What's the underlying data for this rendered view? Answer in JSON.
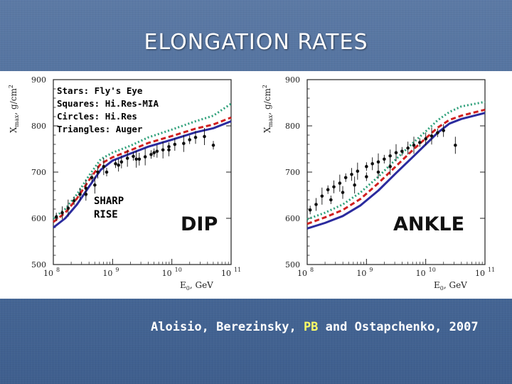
{
  "slide": {
    "title": "ELONGATION RATES",
    "credit_prefix": "Aloisio, Berezinsky, ",
    "credit_highlight": "PB",
    "credit_suffix": " and Ostapchenko, 2007",
    "legend_lines": [
      "Stars: Fly's Eye",
      "Squares: Hi.Res-MIA",
      "Circles: Hi.Res",
      "Triangles: Auger"
    ],
    "sharp_rise_lines": [
      "SHARP",
      "RISE"
    ],
    "dip_label": "DIP",
    "ankle_label": "ANKLE"
  },
  "colors": {
    "background": "#4a6b9a",
    "title": "#ffffff",
    "highlight": "#ffff66",
    "model_solid": "#2b2b9e",
    "model_dashed": "#d02020",
    "model_dotted": "#2ea07a"
  },
  "chart_data": [
    {
      "type": "line",
      "panel": "left",
      "ylabel_main": "X",
      "ylabel_sub": "max",
      "ylabel_unit": ", g/cm",
      "ylabel_exp": "2",
      "xlabel_main": "E",
      "xlabel_sub": "0",
      "xlabel_unit": ", GeV",
      "xscale": "log",
      "xlim": [
        100000000.0,
        100000000000.0
      ],
      "ylim": [
        500,
        900
      ],
      "yticks": [
        500,
        600,
        700,
        800,
        900
      ],
      "xticks": [
        {
          "base": "10",
          "exp": "8",
          "value": 8
        },
        {
          "base": "10",
          "exp": "9",
          "value": 9
        },
        {
          "base": "10",
          "exp": "10",
          "value": 10
        },
        {
          "base": "10",
          "exp": "11",
          "value": 11
        }
      ],
      "series": [
        {
          "style": "solid",
          "color": "#2b2b9e",
          "points": [
            [
              8.0,
              580
            ],
            [
              8.2,
              600
            ],
            [
              8.4,
              630
            ],
            [
              8.6,
              668
            ],
            [
              8.8,
              705
            ],
            [
              9.0,
              725
            ],
            [
              9.3,
              740
            ],
            [
              9.6,
              755
            ],
            [
              10.0,
              770
            ],
            [
              10.4,
              786
            ],
            [
              10.7,
              795
            ],
            [
              11.0,
              810
            ]
          ]
        },
        {
          "style": "dashed",
          "color": "#d02020",
          "points": [
            [
              8.0,
              592
            ],
            [
              8.2,
              612
            ],
            [
              8.4,
              643
            ],
            [
              8.6,
              682
            ],
            [
              8.8,
              718
            ],
            [
              9.0,
              732
            ],
            [
              9.3,
              747
            ],
            [
              9.6,
              763
            ],
            [
              10.0,
              778
            ],
            [
              10.4,
              794
            ],
            [
              10.7,
              803
            ],
            [
              11.0,
              818
            ]
          ]
        },
        {
          "style": "dotted",
          "color": "#2ea07a",
          "points": [
            [
              8.0,
              600
            ],
            [
              8.2,
              620
            ],
            [
              8.4,
              652
            ],
            [
              8.6,
              692
            ],
            [
              8.8,
              728
            ],
            [
              9.0,
              742
            ],
            [
              9.3,
              757
            ],
            [
              9.6,
              775
            ],
            [
              10.0,
              792
            ],
            [
              10.4,
              810
            ],
            [
              10.7,
              822
            ],
            [
              11.0,
              848
            ]
          ]
        }
      ],
      "points": [
        [
          8.05,
          603
        ],
        [
          8.15,
          612
        ],
        [
          8.25,
          622
        ],
        [
          8.35,
          638
        ],
        [
          8.45,
          652
        ],
        [
          8.55,
          665
        ],
        [
          8.65,
          688
        ],
        [
          8.75,
          700
        ],
        [
          8.85,
          712
        ],
        [
          9.05,
          718
        ],
        [
          9.15,
          722
        ],
        [
          9.25,
          730
        ],
        [
          9.35,
          734
        ],
        [
          9.45,
          728
        ],
        [
          9.55,
          733
        ],
        [
          9.65,
          738
        ],
        [
          9.75,
          745
        ],
        [
          9.85,
          748
        ],
        [
          9.95,
          755
        ],
        [
          10.05,
          760
        ],
        [
          10.2,
          762
        ],
        [
          10.3,
          770
        ],
        [
          10.4,
          775
        ],
        [
          10.55,
          777
        ],
        [
          10.7,
          758
        ],
        [
          8.55,
          652
        ],
        [
          8.7,
          672
        ],
        [
          8.9,
          700
        ],
        [
          9.1,
          715
        ],
        [
          9.4,
          728
        ],
        [
          9.7,
          742
        ],
        [
          9.95,
          748
        ]
      ]
    },
    {
      "type": "line",
      "panel": "right",
      "ylabel_main": "X",
      "ylabel_sub": "max",
      "ylabel_unit": ", g/cm",
      "ylabel_exp": "2",
      "xlabel_main": "E",
      "xlabel_sub": "0",
      "xlabel_unit": ", GeV",
      "xscale": "log",
      "xlim": [
        100000000.0,
        100000000000.0
      ],
      "ylim": [
        500,
        900
      ],
      "yticks": [
        500,
        600,
        700,
        800,
        900
      ],
      "xticks": [
        {
          "base": "10",
          "exp": "8",
          "value": 8
        },
        {
          "base": "10",
          "exp": "9",
          "value": 9
        },
        {
          "base": "10",
          "exp": "10",
          "value": 10
        },
        {
          "base": "10",
          "exp": "11",
          "value": 11
        }
      ],
      "series": [
        {
          "style": "solid",
          "color": "#2b2b9e",
          "points": [
            [
              8.0,
              578
            ],
            [
              8.3,
              590
            ],
            [
              8.6,
              605
            ],
            [
              8.9,
              628
            ],
            [
              9.2,
              660
            ],
            [
              9.5,
              698
            ],
            [
              9.8,
              735
            ],
            [
              10.0,
              760
            ],
            [
              10.2,
              785
            ],
            [
              10.4,
              805
            ],
            [
              10.6,
              815
            ],
            [
              11.0,
              828
            ]
          ]
        },
        {
          "style": "dashed",
          "color": "#d02020",
          "points": [
            [
              8.0,
              588
            ],
            [
              8.3,
              602
            ],
            [
              8.6,
              618
            ],
            [
              8.9,
              642
            ],
            [
              9.2,
              676
            ],
            [
              9.5,
              713
            ],
            [
              9.8,
              750
            ],
            [
              10.0,
              773
            ],
            [
              10.2,
              796
            ],
            [
              10.4,
              813
            ],
            [
              10.6,
              822
            ],
            [
              11.0,
              835
            ]
          ]
        },
        {
          "style": "dotted",
          "color": "#2ea07a",
          "points": [
            [
              8.0,
              598
            ],
            [
              8.3,
              612
            ],
            [
              8.6,
              630
            ],
            [
              8.9,
              656
            ],
            [
              9.2,
              690
            ],
            [
              9.5,
              728
            ],
            [
              9.8,
              765
            ],
            [
              10.0,
              788
            ],
            [
              10.2,
              812
            ],
            [
              10.4,
              830
            ],
            [
              10.6,
              842
            ],
            [
              11.0,
              852
            ]
          ]
        }
      ],
      "points": [
        [
          8.05,
          618
        ],
        [
          8.15,
          630
        ],
        [
          8.25,
          648
        ],
        [
          8.35,
          662
        ],
        [
          8.45,
          668
        ],
        [
          8.55,
          676
        ],
        [
          8.65,
          688
        ],
        [
          8.75,
          695
        ],
        [
          8.85,
          702
        ],
        [
          9.0,
          712
        ],
        [
          9.1,
          718
        ],
        [
          9.2,
          722
        ],
        [
          9.3,
          728
        ],
        [
          9.4,
          735
        ],
        [
          9.5,
          742
        ],
        [
          9.6,
          745
        ],
        [
          9.7,
          752
        ],
        [
          9.8,
          758
        ],
        [
          9.9,
          764
        ],
        [
          10.0,
          772
        ],
        [
          10.1,
          778
        ],
        [
          10.2,
          785
        ],
        [
          10.3,
          790
        ],
        [
          10.5,
          758
        ],
        [
          8.4,
          640
        ],
        [
          8.6,
          656
        ],
        [
          8.8,
          672
        ],
        [
          9.0,
          690
        ],
        [
          9.2,
          700
        ],
        [
          9.4,
          712
        ]
      ]
    }
  ]
}
